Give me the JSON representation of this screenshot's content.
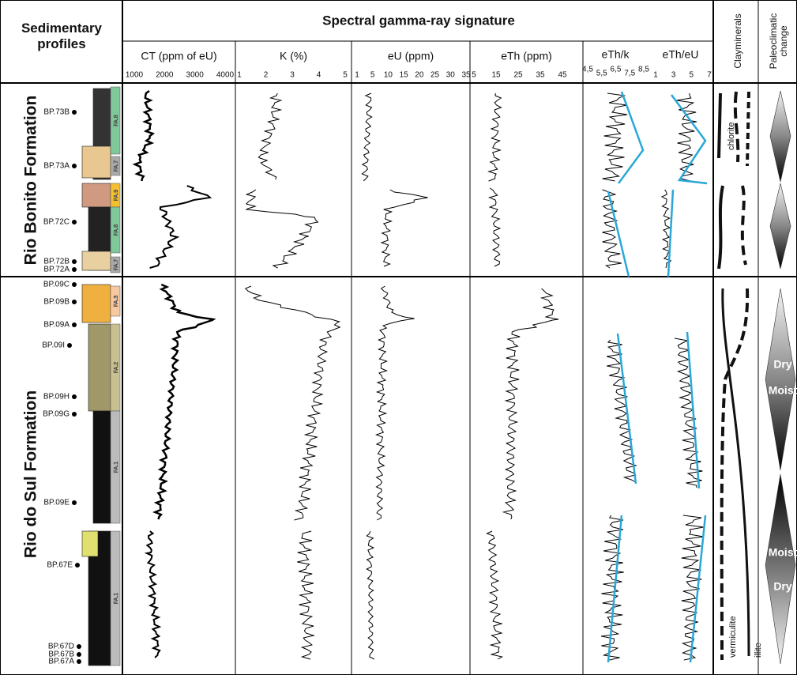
{
  "header": {
    "profiles": "Sedimentary profiles",
    "signature": "Spectral gamma-ray signature",
    "clayminerals": "Clayminerals",
    "paleoclimatic": [
      "Paleoclimatic",
      "change"
    ]
  },
  "columns": [
    "CT (ppm of eU)",
    "K (%)",
    "eU (ppm)",
    "eTh (ppm)",
    "eTh/k",
    "eTh/eU"
  ],
  "scales": [
    [
      1000,
      2000,
      3000,
      4000
    ],
    [
      1,
      2,
      3,
      4,
      5
    ],
    [
      1,
      5,
      10,
      15,
      20,
      25,
      30,
      35
    ],
    [
      5,
      15,
      25,
      35,
      45
    ],
    [
      "4,5",
      "5,5",
      "6,5",
      "7,5",
      "8,5"
    ],
    [
      1,
      3,
      5,
      7
    ]
  ],
  "formations": [
    "Rio Bonito Formation",
    "Rio do Sul Formation"
  ],
  "samples": [
    "BP.73B",
    "BP.73A",
    "BP.72C",
    "BP.72B",
    "BP.72A",
    "BP.09C",
    "BP.09B",
    "BP.09A",
    "BP.09I",
    "BP.09H",
    "BP.09G",
    "BP.09E",
    "BP.67E",
    "BP.67D",
    "BP.67B",
    "BP.67A"
  ],
  "facies": [
    "FA.8",
    "FA.7",
    "FA.9",
    "FA.8",
    "FA.7",
    "FA.3",
    "FA.2",
    "FA.1",
    "FA.1"
  ],
  "annotations": {
    "chlorite": "chlorite",
    "vermiculite": "vermiculite",
    "illite": "illite",
    "climate": [
      "Dry",
      "Moist",
      "Moist",
      "Dry"
    ]
  }
}
